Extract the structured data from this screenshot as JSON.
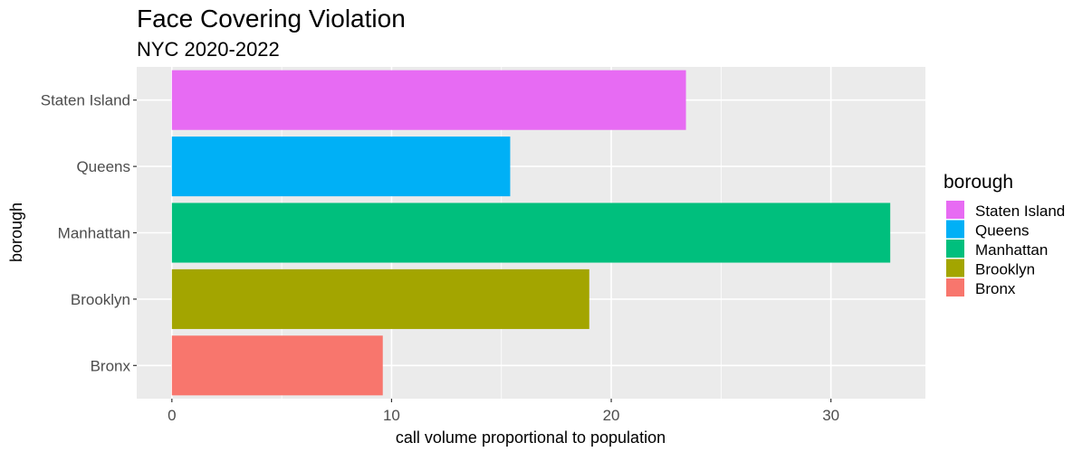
{
  "chart_data": {
    "type": "bar",
    "orientation": "horizontal",
    "title": "Face Covering Violation",
    "subtitle": "NYC 2020-2022",
    "xlabel": "call volume proportional to population",
    "ylabel": "borough",
    "xlim": [
      -1.6,
      34.3
    ],
    "x_ticks": [
      0,
      10,
      20,
      30
    ],
    "x_minor_ticks": [
      5,
      15,
      25
    ],
    "grid": true,
    "legend": {
      "title": "borough",
      "placement": "right",
      "entries": [
        "Staten Island",
        "Queens",
        "Manhattan",
        "Brooklyn",
        "Bronx"
      ]
    },
    "categories": [
      "Bronx",
      "Brooklyn",
      "Manhattan",
      "Queens",
      "Staten Island"
    ],
    "values": [
      9.6,
      19.0,
      32.7,
      15.4,
      23.4
    ],
    "colors": {
      "Bronx": "#F8766D",
      "Brooklyn": "#A3A500",
      "Manhattan": "#00BF7D",
      "Queens": "#00B0F6",
      "Staten Island": "#E76BF3"
    },
    "panel_background": "#EBEBEB",
    "grid_color": "#FFFFFF"
  }
}
